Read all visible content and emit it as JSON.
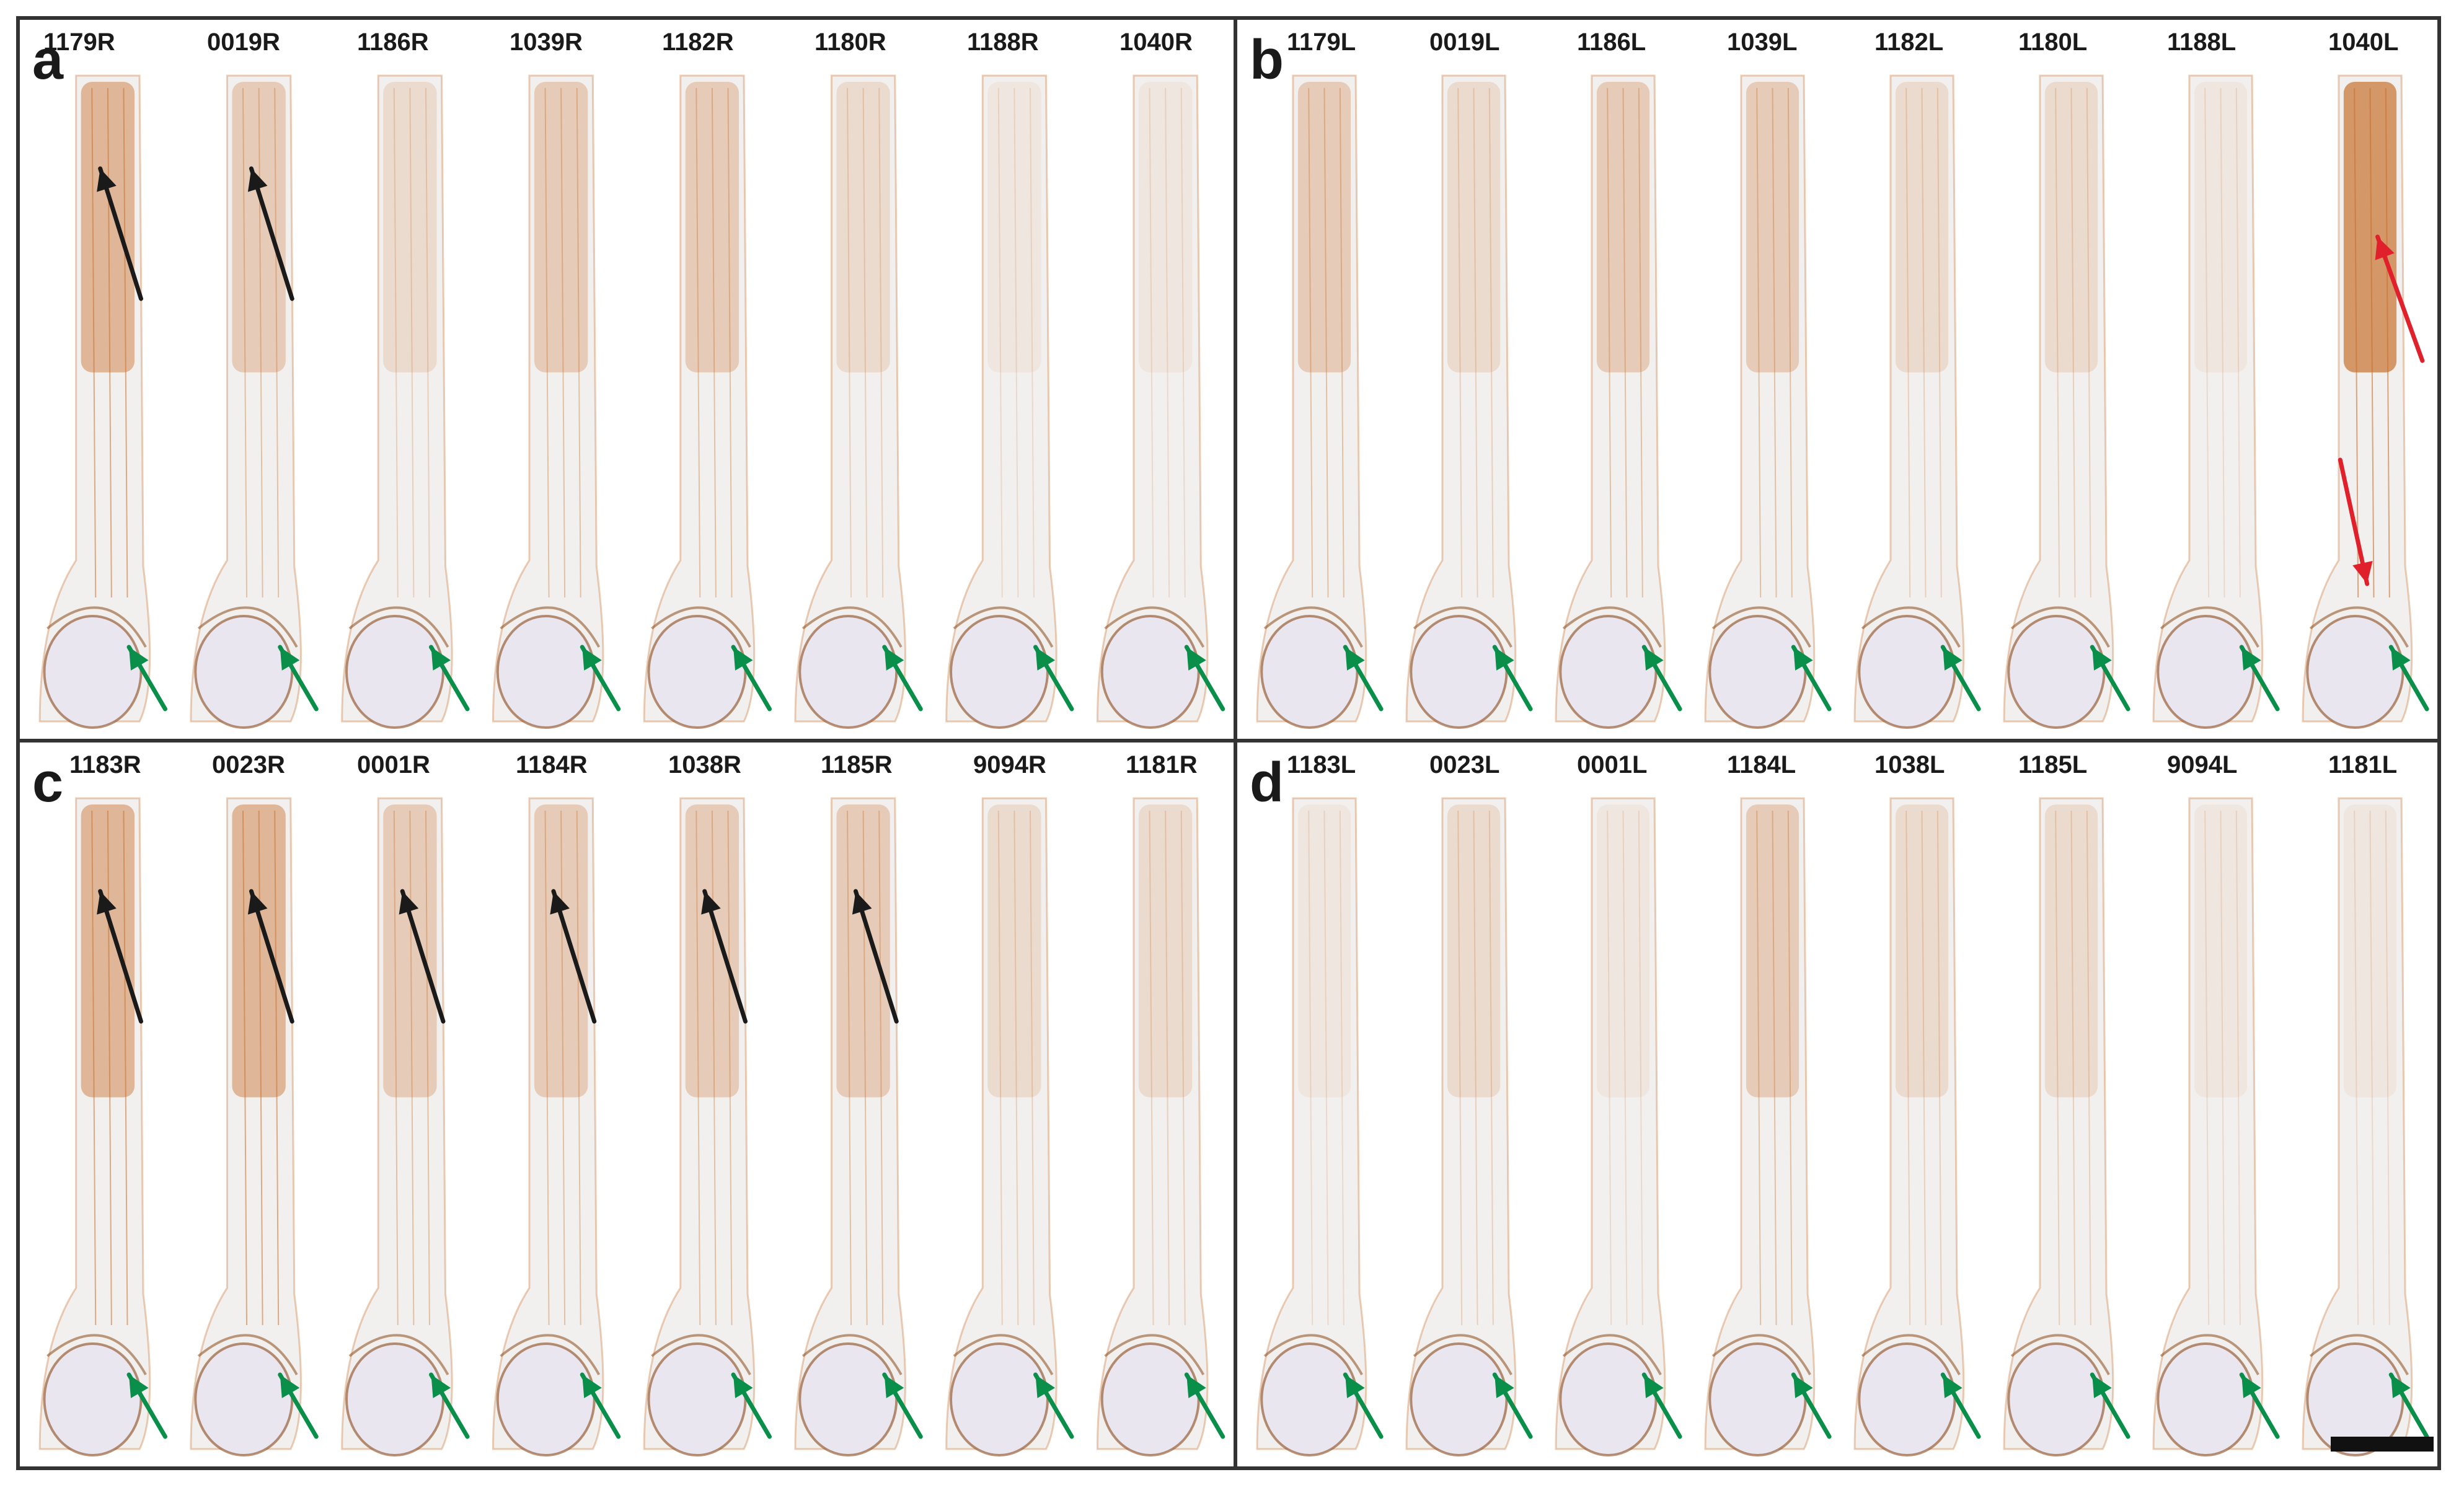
{
  "figure": {
    "panels": [
      {
        "id": "a",
        "letter": "a",
        "labels": [
          "1179R",
          "0019R",
          "1186R",
          "1039R",
          "1182R",
          "1180R",
          "1188R",
          "1040R"
        ],
        "specimens": [
          {
            "stain": "strong",
            "black_arrow": true,
            "red_arrows": 0
          },
          {
            "stain": "medium",
            "black_arrow": true,
            "red_arrows": 0
          },
          {
            "stain": "light",
            "black_arrow": false,
            "red_arrows": 0
          },
          {
            "stain": "medium",
            "black_arrow": false,
            "red_arrows": 0
          },
          {
            "stain": "medium",
            "black_arrow": false,
            "red_arrows": 0
          },
          {
            "stain": "light",
            "black_arrow": false,
            "red_arrows": 0
          },
          {
            "stain": "faint",
            "black_arrow": false,
            "red_arrows": 0
          },
          {
            "stain": "faint",
            "black_arrow": false,
            "red_arrows": 0
          }
        ]
      },
      {
        "id": "b",
        "letter": "b",
        "labels": [
          "1179L",
          "0019L",
          "1186L",
          "1039L",
          "1182L",
          "1180L",
          "1188L",
          "1040L"
        ],
        "specimens": [
          {
            "stain": "medium",
            "black_arrow": false,
            "red_arrows": 0
          },
          {
            "stain": "light",
            "black_arrow": false,
            "red_arrows": 0
          },
          {
            "stain": "medium",
            "black_arrow": false,
            "red_arrows": 0
          },
          {
            "stain": "medium",
            "black_arrow": false,
            "red_arrows": 0
          },
          {
            "stain": "light",
            "black_arrow": false,
            "red_arrows": 0
          },
          {
            "stain": "light",
            "black_arrow": false,
            "red_arrows": 0
          },
          {
            "stain": "faint",
            "black_arrow": false,
            "red_arrows": 0
          },
          {
            "stain": "heavy",
            "black_arrow": false,
            "red_arrows": 2
          }
        ]
      },
      {
        "id": "c",
        "letter": "c",
        "labels": [
          "1183R",
          "0023R",
          "0001R",
          "1184R",
          "1038R",
          "1185R",
          "9094R",
          "1181R"
        ],
        "specimens": [
          {
            "stain": "strong",
            "black_arrow": true,
            "red_arrows": 0
          },
          {
            "stain": "strong",
            "black_arrow": true,
            "red_arrows": 0
          },
          {
            "stain": "medium",
            "black_arrow": true,
            "red_arrows": 0
          },
          {
            "stain": "medium",
            "black_arrow": true,
            "red_arrows": 0
          },
          {
            "stain": "medium",
            "black_arrow": true,
            "red_arrows": 0
          },
          {
            "stain": "medium",
            "black_arrow": true,
            "red_arrows": 0
          },
          {
            "stain": "light",
            "black_arrow": false,
            "red_arrows": 0
          },
          {
            "stain": "light",
            "black_arrow": false,
            "red_arrows": 0
          }
        ]
      },
      {
        "id": "d",
        "letter": "d",
        "labels": [
          "1183L",
          "0023L",
          "0001L",
          "1184L",
          "1038L",
          "1185L",
          "9094L",
          "1181L"
        ],
        "specimens": [
          {
            "stain": "faint",
            "black_arrow": false,
            "red_arrows": 0
          },
          {
            "stain": "light",
            "black_arrow": false,
            "red_arrows": 0
          },
          {
            "stain": "faint",
            "black_arrow": false,
            "red_arrows": 0
          },
          {
            "stain": "medium",
            "black_arrow": false,
            "red_arrows": 0
          },
          {
            "stain": "light",
            "black_arrow": false,
            "red_arrows": 0
          },
          {
            "stain": "light",
            "black_arrow": false,
            "red_arrows": 0
          },
          {
            "stain": "faint",
            "black_arrow": false,
            "red_arrows": 0
          },
          {
            "stain": "faint",
            "black_arrow": false,
            "red_arrows": 0
          }
        ]
      }
    ],
    "colors": {
      "border": "#333333",
      "tissue_base": "#f2f0ee",
      "stain": "#c8702e",
      "stain_dark": "#8a4a1c",
      "bone": "#e9e6f0",
      "arrow_black": "#1a1a1a",
      "arrow_green": "#0a8f4a",
      "arrow_red": "#e0202a",
      "scale_bar": "#111111"
    }
  }
}
